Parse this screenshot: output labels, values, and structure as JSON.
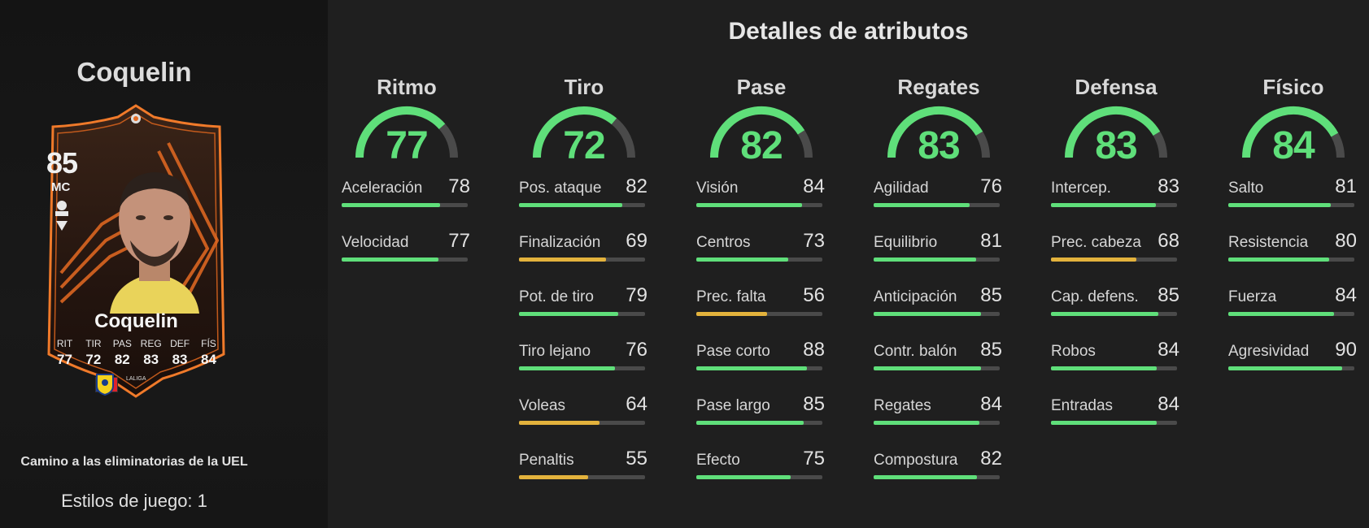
{
  "player_name": "Coquelin",
  "card": {
    "rating": "85",
    "position": "MC",
    "name": "Coquelin",
    "stats": [
      {
        "label": "RIT",
        "value": "77"
      },
      {
        "label": "TIR",
        "value": "72"
      },
      {
        "label": "PAS",
        "value": "82"
      },
      {
        "label": "REG",
        "value": "83"
      },
      {
        "label": "DEF",
        "value": "83"
      },
      {
        "label": "FÍS",
        "value": "84"
      }
    ],
    "league_icon_text": "LALIGA",
    "colors": {
      "accent": "#f07a2a",
      "card_bg": "#2a1a14",
      "flag_blue": "#1f3d9e",
      "flag_white": "#ffffff",
      "flag_red": "#e0222a"
    }
  },
  "promo": "Camino a las eliminatorias de la UEL",
  "playstyles": "Estilos de juego: 1",
  "section_title": "Detalles de atributos",
  "colors": {
    "high": "#5fdf7a",
    "mid": "#e3b23c",
    "track": "#4a4a4a",
    "gauge_rest": "#4a4a4a"
  },
  "categories": [
    {
      "title": "Ritmo",
      "value": "77",
      "attributes": [
        {
          "name": "Aceleración",
          "value": "78"
        },
        {
          "name": "Velocidad",
          "value": "77"
        }
      ]
    },
    {
      "title": "Tiro",
      "value": "72",
      "attributes": [
        {
          "name": "Pos. ataque",
          "value": "82"
        },
        {
          "name": "Finalización",
          "value": "69"
        },
        {
          "name": "Pot. de tiro",
          "value": "79"
        },
        {
          "name": "Tiro lejano",
          "value": "76"
        },
        {
          "name": "Voleas",
          "value": "64"
        },
        {
          "name": "Penaltis",
          "value": "55"
        }
      ]
    },
    {
      "title": "Pase",
      "value": "82",
      "attributes": [
        {
          "name": "Visión",
          "value": "84"
        },
        {
          "name": "Centros",
          "value": "73"
        },
        {
          "name": "Prec. falta",
          "value": "56"
        },
        {
          "name": "Pase corto",
          "value": "88"
        },
        {
          "name": "Pase largo",
          "value": "85"
        },
        {
          "name": "Efecto",
          "value": "75"
        }
      ]
    },
    {
      "title": "Regates",
      "value": "83",
      "attributes": [
        {
          "name": "Agilidad",
          "value": "76"
        },
        {
          "name": "Equilibrio",
          "value": "81"
        },
        {
          "name": "Anticipación",
          "value": "85"
        },
        {
          "name": "Contr. balón",
          "value": "85"
        },
        {
          "name": "Regates",
          "value": "84"
        },
        {
          "name": "Compostura",
          "value": "82"
        }
      ]
    },
    {
      "title": "Defensa",
      "value": "83",
      "attributes": [
        {
          "name": "Intercep.",
          "value": "83"
        },
        {
          "name": "Prec. cabeza",
          "value": "68"
        },
        {
          "name": "Cap. defens.",
          "value": "85"
        },
        {
          "name": "Robos",
          "value": "84"
        },
        {
          "name": "Entradas",
          "value": "84"
        }
      ]
    },
    {
      "title": "Físico",
      "value": "84",
      "attributes": [
        {
          "name": "Salto",
          "value": "81"
        },
        {
          "name": "Resistencia",
          "value": "80"
        },
        {
          "name": "Fuerza",
          "value": "84"
        },
        {
          "name": "Agresividad",
          "value": "90"
        }
      ]
    }
  ]
}
